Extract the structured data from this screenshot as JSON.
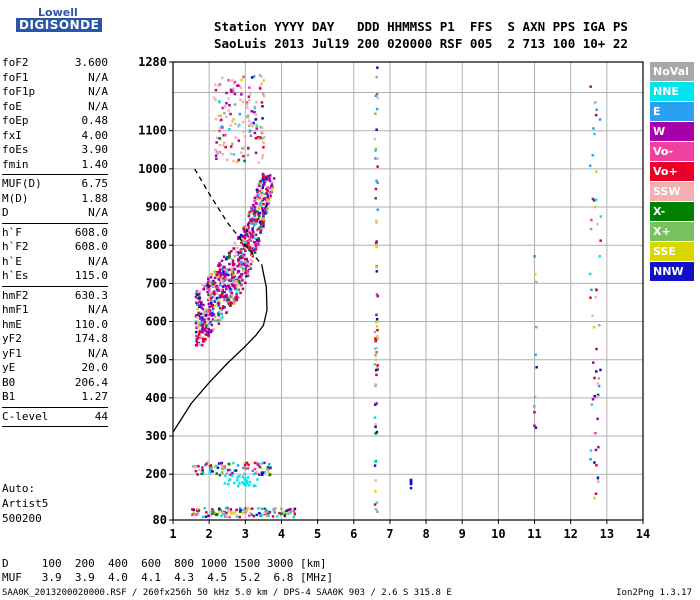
{
  "logo": {
    "line1": "Lowell",
    "line2": "DIGISONDE"
  },
  "header": {
    "line1": "Station YYYY DAY   DDD HHMMSS P1  FFS  S AXN PPS IGA PS",
    "line2": "SaoLuis 2013 Jul19 200 020000 RSF 005  2 713 100 10+ 22"
  },
  "params": [
    {
      "k": "foF2",
      "v": "3.600"
    },
    {
      "k": "foF1",
      "v": "N/A"
    },
    {
      "k": "foF1p",
      "v": "N/A"
    },
    {
      "k": "foE",
      "v": "N/A"
    },
    {
      "k": "foEp",
      "v": "0.48"
    },
    {
      "k": "fxI",
      "v": "4.00"
    },
    {
      "k": "foEs",
      "v": "3.90"
    },
    {
      "k": "fmin",
      "v": "1.40"
    },
    {
      "sep": true
    },
    {
      "k": "MUF(D)",
      "v": "6.75"
    },
    {
      "k": "M(D)",
      "v": "1.88"
    },
    {
      "k": "D",
      "v": "N/A"
    },
    {
      "sep": true
    },
    {
      "k": "h`F",
      "v": "608.0"
    },
    {
      "k": "h`F2",
      "v": "608.0"
    },
    {
      "k": "h`E",
      "v": "N/A"
    },
    {
      "k": "h`Es",
      "v": "115.0"
    },
    {
      "sep": true
    },
    {
      "k": "hmF2",
      "v": "630.3"
    },
    {
      "k": "hmF1",
      "v": "N/A"
    },
    {
      "k": "hmE",
      "v": "110.0"
    },
    {
      "k": "yF2",
      "v": "174.8"
    },
    {
      "k": "yF1",
      "v": "N/A"
    },
    {
      "k": "yE",
      "v": "20.0"
    },
    {
      "k": "B0",
      "v": "206.4"
    },
    {
      "k": "B1",
      "v": "1.27"
    },
    {
      "sep": true
    },
    {
      "k": "C-level",
      "v": "44"
    },
    {
      "sep": true
    }
  ],
  "autoscaling": {
    "line1": "Auto:",
    "line2": "Artist5",
    "line3": "500200"
  },
  "legend": [
    {
      "label": "NoVal",
      "color": "#a8a8a8"
    },
    {
      "label": "NNE",
      "color": "#00e4f0"
    },
    {
      "label": "E",
      "color": "#2aa0f0"
    },
    {
      "label": "W",
      "color": "#a800a8"
    },
    {
      "label": "Vo-",
      "color": "#f040a0"
    },
    {
      "label": "Vo+",
      "color": "#e8002a"
    },
    {
      "label": "SSW",
      "color": "#f4b0b0"
    },
    {
      "label": "X-",
      "color": "#008000"
    },
    {
      "label": "X+",
      "color": "#78c060"
    },
    {
      "label": "SSE",
      "color": "#d8d800"
    },
    {
      "label": "NNW",
      "color": "#1010c8"
    }
  ],
  "bottom_table": {
    "line1": "D     100  200  400  600  800 1000 1500 3000 [km]",
    "line2": "MUF   3.9  3.9  4.0  4.1  4.3  4.5  5.2  6.8 [MHz]"
  },
  "footer": {
    "left": "SAA0K_2013200020000.RSF / 260fx256h 50 kHz 5.0 km / DPS-4 SAA0K 903 / 2.6 S 315.8 E",
    "right": "Ion2Png 1.3.17"
  },
  "chart_data": {
    "type": "scatter",
    "title": "",
    "xlabel": "",
    "ylabel": "",
    "xlim": [
      1,
      14
    ],
    "ylim": [
      80,
      1280
    ],
    "x_ticks": [
      1,
      2,
      3,
      4,
      5,
      6,
      7,
      8,
      9,
      10,
      11,
      12,
      13,
      14
    ],
    "y_ticks": [
      80,
      200,
      300,
      400,
      500,
      600,
      700,
      800,
      900,
      1000,
      1100,
      1280
    ],
    "grid": true,
    "series": [
      {
        "name": "F-trace (true height profile)",
        "style": "solid",
        "points": [
          [
            1.0,
            310
          ],
          [
            1.5,
            385
          ],
          [
            2.0,
            440
          ],
          [
            2.5,
            490
          ],
          [
            3.0,
            535
          ],
          [
            3.3,
            565
          ],
          [
            3.5,
            590
          ],
          [
            3.6,
            630
          ],
          [
            3.58,
            690
          ],
          [
            3.45,
            750
          ]
        ]
      },
      {
        "name": "E region extrapolation",
        "style": "dashed",
        "points": [
          [
            1.6,
            1000
          ],
          [
            2.0,
            935
          ],
          [
            2.5,
            860
          ],
          [
            3.0,
            800
          ],
          [
            3.45,
            750
          ]
        ]
      }
    ]
  }
}
